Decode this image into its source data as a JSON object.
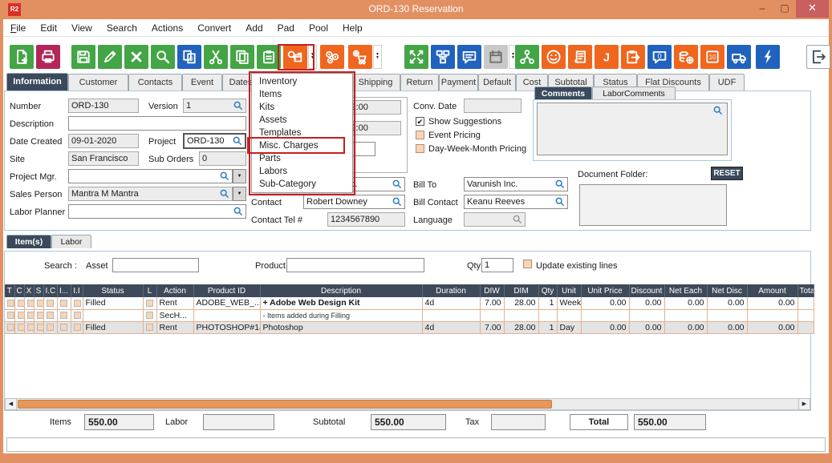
{
  "window": {
    "title": "ORD-130 Reservation",
    "logo": "R2",
    "controls": {
      "minimize": "–",
      "maximize": "▢",
      "close": "✕"
    }
  },
  "colors": {
    "frame_orange": "#e29062",
    "accent_green": "#43a546",
    "accent_orange": "#f0661f",
    "accent_blue": "#2062be",
    "accent_magenta": "#b3265a",
    "header_slate": "#3e4a59",
    "annotation_red": "#c3201f",
    "scroll_thumb": "#e5975c"
  },
  "menu_bar": {
    "items": [
      "File",
      "Edit",
      "View",
      "Search",
      "Actions",
      "Convert",
      "Add",
      "Pad",
      "Pool",
      "Help"
    ]
  },
  "toolbar": {
    "buttons": [
      {
        "name": "new-document",
        "color": "green"
      },
      {
        "name": "print",
        "color": "magenta"
      },
      {
        "name": "save",
        "color": "green"
      },
      {
        "name": "edit",
        "color": "green"
      },
      {
        "name": "delete",
        "color": "green"
      },
      {
        "name": "search",
        "color": "green"
      },
      {
        "name": "copy-zero",
        "color": "blue"
      },
      {
        "name": "cut",
        "color": "green"
      },
      {
        "name": "copy",
        "color": "green"
      },
      {
        "name": "paste",
        "color": "green"
      },
      {
        "name": "inventory-search",
        "color": "orange",
        "arrow": true,
        "highlighted": true
      },
      {
        "name": "process-gears",
        "color": "orange"
      },
      {
        "name": "purchase-order-cart",
        "color": "orange",
        "arrow": true
      },
      {
        "name": "expand",
        "color": "green"
      },
      {
        "name": "org-chart",
        "color": "blue"
      },
      {
        "name": "message",
        "color": "blue"
      },
      {
        "name": "calendar",
        "color": "gray",
        "arrow": true,
        "disabled": true
      },
      {
        "name": "hierarchy",
        "color": "green"
      },
      {
        "name": "customer-smiley",
        "color": "orange"
      },
      {
        "name": "invoice-scroll",
        "color": "orange"
      },
      {
        "name": "journal",
        "color": "orange"
      },
      {
        "name": "clipboard-transfer",
        "color": "orange"
      },
      {
        "name": "chat-zero",
        "color": "blue"
      },
      {
        "name": "coins-add",
        "color": "orange"
      },
      {
        "name": "vault",
        "color": "orange"
      },
      {
        "name": "delivery-truck",
        "color": "blue"
      },
      {
        "name": "lightning",
        "color": "blue"
      },
      {
        "name": "exit",
        "color": "white"
      }
    ]
  },
  "main_tabs": {
    "active": "Information",
    "items": [
      "Information",
      "Customer",
      "Contacts",
      "Event",
      "Dates",
      "Shipping",
      "Return",
      "Payment",
      "Default",
      "Cost",
      "Subtotal",
      "Status",
      "Flat Discounts",
      "UDF"
    ]
  },
  "dropdown_menu": {
    "items": [
      "Inventory",
      "Items",
      "Kits",
      "Assets",
      "Templates",
      "Misc. Charges",
      "Parts",
      "Labors",
      "Sub-Category"
    ],
    "highlighted": "Misc. Charges"
  },
  "info": {
    "number": {
      "label": "Number",
      "value": "ORD-130"
    },
    "version": {
      "label": "Version",
      "value": "1"
    },
    "description": {
      "label": "Description",
      "value": ""
    },
    "date_created": {
      "label": "Date Created",
      "value": "09-01-2020"
    },
    "project": {
      "label": "Project",
      "value": "ORD-130"
    },
    "site": {
      "label": "Site",
      "value": "San Francisco"
    },
    "sub_orders": {
      "label": "Sub Orders",
      "value": "0"
    },
    "project_mgr": {
      "label": "Project Mgr.",
      "value": ""
    },
    "sales_person": {
      "label": "Sales Person",
      "value": "Mantra M Mantra"
    },
    "labor_planner": {
      "label": "Labor Planner",
      "value": ""
    },
    "date_out": {
      "value": "09-01-2020 09:00"
    },
    "date_in": {
      "value": "09-01-2020 09:00"
    },
    "conv_date": {
      "label": "Conv. Date",
      "value": ""
    },
    "pricing_options": [
      {
        "label": "Show Suggestions",
        "checked": true
      },
      {
        "label": "Event Pricing",
        "checked": false
      },
      {
        "label": "Day-Week-Month Pricing",
        "checked": false
      }
    ],
    "customer": {
      "value": "Varunish Inc."
    },
    "bill_to": {
      "label": "Bill To",
      "value": "Varunish Inc."
    },
    "contact": {
      "label": "Contact",
      "value": "Robert Downey"
    },
    "bill_contact": {
      "label": "Bill Contact",
      "value": "Keanu Reeves"
    },
    "contact_tel": {
      "label": "Contact Tel #",
      "value": "1234567890"
    },
    "language": {
      "label": "Language",
      "value": ""
    },
    "comments_tabs": {
      "active": "Comments",
      "items": [
        "Comments",
        "LaborComments"
      ]
    },
    "comments_text": "",
    "document_folder_label": "Document Folder:",
    "document_folder_text": "",
    "reset_label": "RESET"
  },
  "items_section": {
    "tabs": {
      "active": "Item(s)",
      "items": [
        "Item(s)",
        "Labor"
      ]
    },
    "search": {
      "label": "Search :",
      "asset_label": "Asset",
      "asset_value": "",
      "product_label": "Product",
      "product_value": "",
      "qty_label": "Qty",
      "qty_value": "1",
      "update_label": "Update existing lines",
      "update_checked": false
    },
    "grid": {
      "checkbox_columns": [
        "T",
        "C",
        "X",
        "S",
        "I.C",
        "I...",
        "I.I"
      ],
      "columns": [
        "Status",
        "L",
        "Action",
        "Product ID",
        "Description",
        "Duration",
        "DIW",
        "DIM",
        "Qty",
        "Unit",
        "Unit Price",
        "Discount",
        "Net Each",
        "Net Disc",
        "Amount",
        "Total"
      ],
      "rows": [
        {
          "status": "Filled",
          "action": "Rent",
          "product_id": "ADOBE_WEB_...",
          "description": "+ Adobe Web Design Kit",
          "desc_style": "bold",
          "duration": "4d",
          "diw": "7.00",
          "dim": "28.00",
          "qty": "1",
          "unit": "Week",
          "unit_price": "0.00",
          "discount": "0.00",
          "net_each": "0.00",
          "net_disc": "0.00",
          "amount": "0.00",
          "total": ""
        },
        {
          "status": "",
          "action": "SecH...",
          "product_id": "",
          "description": "- Items added during Filling",
          "desc_style": "small",
          "duration": "",
          "diw": "",
          "dim": "",
          "qty": "",
          "unit": "",
          "unit_price": "",
          "discount": "",
          "net_each": "",
          "net_disc": "",
          "amount": "",
          "total": ""
        },
        {
          "status": "Filled",
          "action": "Rent",
          "product_id": "PHOTOSHOP#14",
          "description": "Photoshop",
          "desc_style": "normal",
          "duration": "4d",
          "diw": "7.00",
          "dim": "28.00",
          "qty": "1",
          "unit": "Day",
          "unit_price": "0.00",
          "discount": "0.00",
          "net_each": "0.00",
          "net_disc": "0.00",
          "amount": "0.00",
          "total": ""
        }
      ]
    },
    "totals": {
      "items_label": "Items",
      "items_value": "550.00",
      "labor_label": "Labor",
      "labor_value": "",
      "subtotal_label": "Subtotal",
      "subtotal_value": "550.00",
      "tax_label": "Tax",
      "tax_value": "",
      "total_label": "Total",
      "total_value": "550.00"
    }
  }
}
